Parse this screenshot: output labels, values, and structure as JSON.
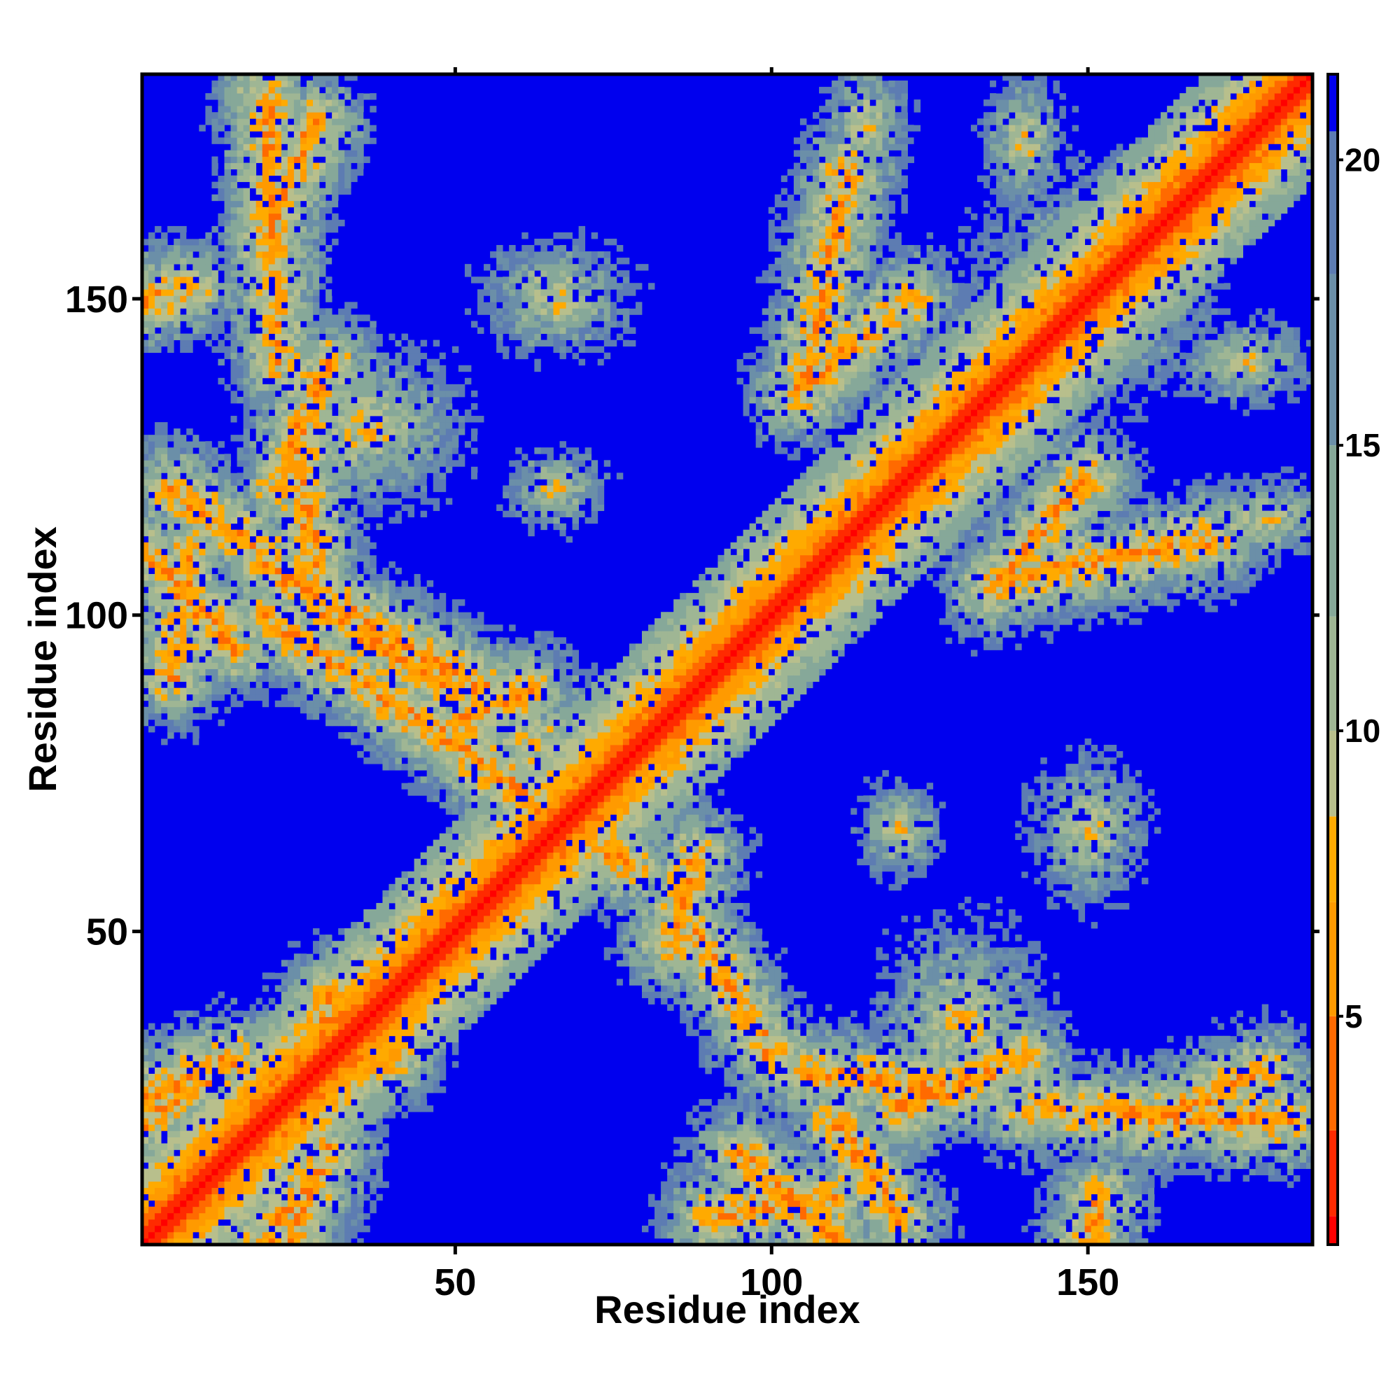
{
  "chart_data": {
    "type": "heatmap",
    "title": "",
    "xlabel": "Residue index",
    "ylabel": "Residue index",
    "n_residues": 185,
    "xlim": [
      1,
      185
    ],
    "ylim": [
      1,
      185
    ],
    "x_ticks": [
      50,
      100,
      150
    ],
    "y_ticks": [
      50,
      100,
      150
    ],
    "x_tick_labels": [
      "50",
      "100",
      "150"
    ],
    "y_tick_labels": [
      "50",
      "100",
      "150"
    ],
    "colorbar": {
      "range": [
        1,
        21.5
      ],
      "ticks": [
        5,
        10,
        15,
        20
      ],
      "tick_labels": [
        "5",
        "10",
        "15",
        "20"
      ],
      "position": "right"
    },
    "color_scale": [
      {
        "max": 1.5,
        "color": "#ff0000"
      },
      {
        "max": 3,
        "color": "#ff2a00"
      },
      {
        "max": 5,
        "color": "#ff6a00"
      },
      {
        "max": 7,
        "color": "#ff9a00"
      },
      {
        "max": 8.5,
        "color": "#ffaa00"
      },
      {
        "max": 10,
        "color": "#b8bf8c"
      },
      {
        "max": 12,
        "color": "#9fb694"
      },
      {
        "max": 15,
        "color": "#86a899"
      },
      {
        "max": 18,
        "color": "#6b8fa8"
      },
      {
        "max": 20.5,
        "color": "#5d7cb2"
      },
      {
        "max": 99,
        "color": "#0000ee"
      }
    ],
    "background_color": "#0000ee",
    "structure_segments": [
      {
        "a": [
          1,
          1
        ],
        "b": [
          185,
          185
        ],
        "kind": "diagonal"
      },
      {
        "a": [
          20,
          100
        ],
        "b": [
          78,
          60
        ],
        "kind": "antiparallel"
      },
      {
        "a": [
          20,
          108
        ],
        "b": [
          55,
          88
        ],
        "kind": "antiparallel"
      },
      {
        "a": [
          84,
          48
        ],
        "b": [
          88,
          62
        ],
        "kind": "parallel"
      },
      {
        "a": [
          48,
          82
        ],
        "b": [
          62,
          88
        ],
        "kind": "parallel"
      },
      {
        "a": [
          104,
          135
        ],
        "b": [
          122,
          150
        ],
        "kind": "parallel"
      },
      {
        "a": [
          135,
          104
        ],
        "b": [
          150,
          122
        ],
        "kind": "parallel"
      },
      {
        "a": [
          105,
          135
        ],
        "b": [
          112,
          170
        ],
        "kind": "antiparallel"
      },
      {
        "a": [
          135,
          105
        ],
        "b": [
          170,
          112
        ],
        "kind": "antiparallel"
      },
      {
        "a": [
          26,
          20
        ],
        "b": [
          30,
          40
        ],
        "kind": "parallel"
      },
      {
        "a": [
          20,
          26
        ],
        "b": [
          40,
          30
        ],
        "kind": "parallel"
      },
      {
        "a": [
          88,
          50
        ],
        "b": [
          100,
          30
        ],
        "kind": "antiparallel"
      },
      {
        "a": [
          50,
          88
        ],
        "b": [
          30,
          100
        ],
        "kind": "antiparallel"
      },
      {
        "a": [
          105,
          28
        ],
        "b": [
          130,
          25
        ],
        "kind": "parallel"
      },
      {
        "a": [
          28,
          105
        ],
        "b": [
          25,
          130
        ],
        "kind": "parallel"
      },
      {
        "a": [
          140,
          22
        ],
        "b": [
          182,
          20
        ],
        "kind": "parallel"
      },
      {
        "a": [
          22,
          140
        ],
        "b": [
          20,
          182
        ],
        "kind": "parallel"
      },
      {
        "a": [
          110,
          20
        ],
        "b": [
          120,
          5
        ],
        "kind": "parallel"
      },
      {
        "a": [
          20,
          110
        ],
        "b": [
          5,
          120
        ],
        "kind": "parallel"
      },
      {
        "a": [
          22,
          120
        ],
        "b": [
          30,
          140
        ],
        "kind": "parallel"
      },
      {
        "a": [
          120,
          22
        ],
        "b": [
          140,
          30
        ],
        "kind": "parallel"
      },
      {
        "a": [
          1,
          110
        ],
        "b": [
          15,
          95
        ],
        "kind": "antiparallel"
      },
      {
        "a": [
          110,
          1
        ],
        "b": [
          95,
          15
        ],
        "kind": "antiparallel"
      },
      {
        "a": [
          20,
          160
        ],
        "b": [
          28,
          178
        ],
        "kind": "parallel"
      },
      {
        "a": [
          160,
          20
        ],
        "b": [
          178,
          28
        ],
        "kind": "parallel"
      },
      {
        "a": [
          1,
          150
        ],
        "b": [
          8,
          152
        ],
        "kind": "parallel"
      },
      {
        "a": [
          150,
          1
        ],
        "b": [
          152,
          8
        ],
        "kind": "parallel"
      },
      {
        "a": [
          1,
          20
        ],
        "b": [
          12,
          28
        ],
        "kind": "parallel"
      },
      {
        "a": [
          20,
          1
        ],
        "b": [
          28,
          12
        ],
        "kind": "parallel"
      },
      {
        "a": [
          24,
          1
        ],
        "b": [
          30,
          15
        ],
        "kind": "parallel"
      },
      {
        "a": [
          1,
          24
        ],
        "b": [
          15,
          30
        ],
        "kind": "parallel"
      },
      {
        "a": [
          90,
          5
        ],
        "b": [
          110,
          8
        ],
        "kind": "parallel"
      },
      {
        "a": [
          5,
          90
        ],
        "b": [
          8,
          110
        ],
        "kind": "parallel"
      }
    ],
    "contact_blobs": [
      {
        "x": 66,
        "y": 150,
        "rx": 9,
        "ry": 7
      },
      {
        "x": 150,
        "y": 66,
        "rx": 7,
        "ry": 9
      },
      {
        "x": 66,
        "y": 120,
        "rx": 6,
        "ry": 5
      },
      {
        "x": 120,
        "y": 66,
        "rx": 5,
        "ry": 6
      },
      {
        "x": 151,
        "y": 152,
        "rx": 14,
        "ry": 14
      },
      {
        "x": 115,
        "y": 178,
        "rx": 5,
        "ry": 8
      },
      {
        "x": 178,
        "y": 115,
        "rx": 8,
        "ry": 5
      },
      {
        "x": 140,
        "y": 175,
        "rx": 5,
        "ry": 8
      },
      {
        "x": 175,
        "y": 140,
        "rx": 8,
        "ry": 5
      },
      {
        "x": 62,
        "y": 80,
        "rx": 10,
        "ry": 9
      },
      {
        "x": 36,
        "y": 130,
        "rx": 12,
        "ry": 10
      },
      {
        "x": 130,
        "y": 36,
        "rx": 10,
        "ry": 12
      }
    ]
  }
}
